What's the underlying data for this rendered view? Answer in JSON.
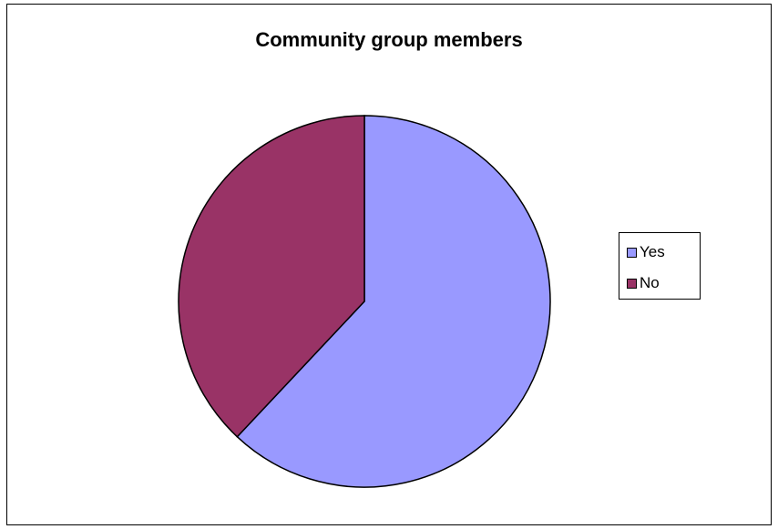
{
  "chart_data": {
    "type": "pie",
    "title": "Community group members",
    "categories": [
      "Yes",
      "No"
    ],
    "values": [
      62,
      38
    ],
    "colors": [
      "#9999FF",
      "#993366"
    ],
    "legend_position": "right"
  }
}
